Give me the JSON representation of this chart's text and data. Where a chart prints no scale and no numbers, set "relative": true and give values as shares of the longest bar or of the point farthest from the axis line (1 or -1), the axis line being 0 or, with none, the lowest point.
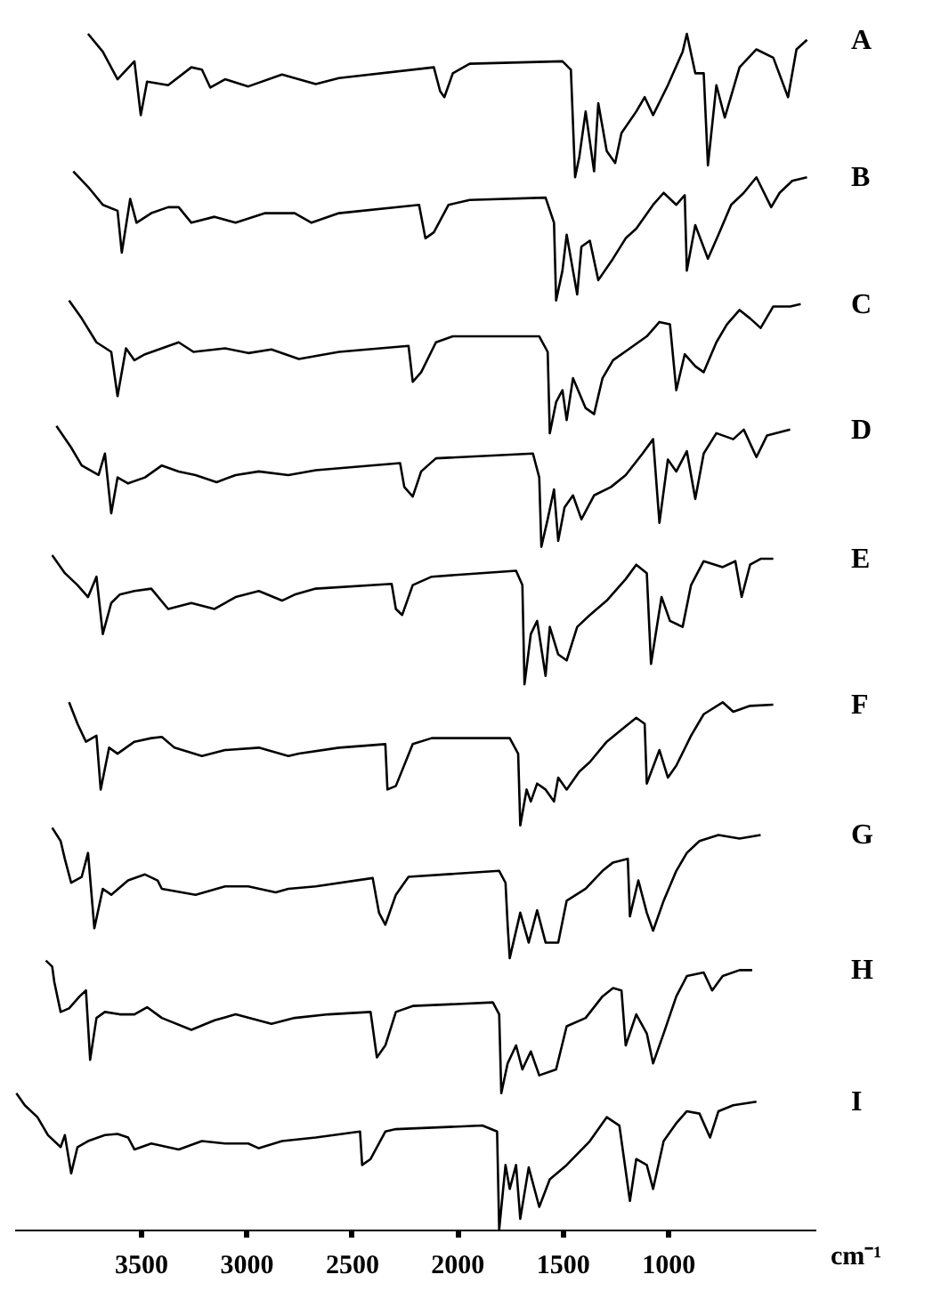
{
  "chart_data": {
    "type": "line",
    "relative": true,
    "xlabel": "cm⁻¹",
    "xlim": [
      4100,
      300
    ],
    "xticks": [
      3500,
      3000,
      2500,
      2000,
      1500,
      1000
    ],
    "marker": "none",
    "line_style": "solid",
    "series": [
      {
        "name": "A",
        "color": "#000000",
        "x": [
          3750,
          3680,
          3610,
          3530,
          3500,
          3470,
          3370,
          3260,
          3210,
          3170,
          3100,
          2990,
          2830,
          2670,
          2560,
          2110,
          2080,
          2060,
          2020,
          1940,
          1500,
          1460,
          1440,
          1420,
          1390,
          1350,
          1330,
          1290,
          1250,
          1220,
          1150,
          1110,
          1070,
          1000,
          930,
          910,
          870,
          830,
          810,
          770,
          730,
          660,
          580,
          500,
          430,
          390,
          340
        ],
        "values": [
          1.0,
          0.985,
          0.962,
          0.977,
          0.932,
          0.96,
          0.957,
          0.972,
          0.97,
          0.955,
          0.962,
          0.956,
          0.966,
          0.958,
          0.963,
          0.972,
          0.952,
          0.947,
          0.967,
          0.975,
          0.977,
          0.97,
          0.88,
          0.897,
          0.935,
          0.885,
          0.942,
          0.902,
          0.892,
          0.917,
          0.935,
          0.947,
          0.932,
          0.957,
          0.985,
          1.0,
          0.967,
          0.967,
          0.89,
          0.957,
          0.93,
          0.972,
          0.987,
          0.98,
          0.947,
          0.987,
          0.995
        ]
      },
      {
        "name": "B",
        "color": "#000000",
        "x": [
          3820,
          3750,
          3680,
          3610,
          3590,
          3550,
          3520,
          3450,
          3370,
          3320,
          3260,
          3150,
          3050,
          2910,
          2770,
          2690,
          2560,
          2180,
          2150,
          2110,
          2040,
          1940,
          1580,
          1540,
          1530,
          1500,
          1480,
          1430,
          1410,
          1370,
          1330,
          1260,
          1200,
          1150,
          1070,
          1020,
          960,
          920,
          910,
          870,
          810,
          760,
          700,
          640,
          580,
          510,
          470,
          410,
          340
        ],
        "values": [
          0.885,
          0.872,
          0.857,
          0.852,
          0.817,
          0.862,
          0.842,
          0.85,
          0.855,
          0.855,
          0.842,
          0.847,
          0.842,
          0.85,
          0.85,
          0.842,
          0.85,
          0.857,
          0.829,
          0.834,
          0.857,
          0.861,
          0.863,
          0.842,
          0.777,
          0.802,
          0.832,
          0.782,
          0.822,
          0.827,
          0.794,
          0.812,
          0.829,
          0.837,
          0.857,
          0.867,
          0.857,
          0.865,
          0.802,
          0.84,
          0.812,
          0.832,
          0.857,
          0.867,
          0.88,
          0.855,
          0.867,
          0.877,
          0.88
        ]
      },
      {
        "name": "C",
        "color": "#000000",
        "x": [
          3840,
          3780,
          3710,
          3640,
          3610,
          3570,
          3530,
          3480,
          3400,
          3320,
          3250,
          3100,
          2990,
          2880,
          2750,
          2560,
          2230,
          2210,
          2170,
          2100,
          2020,
          1610,
          1570,
          1560,
          1530,
          1500,
          1480,
          1450,
          1390,
          1350,
          1310,
          1260,
          1180,
          1100,
          1040,
          990,
          960,
          920,
          870,
          830,
          770,
          720,
          660,
          610,
          560,
          500,
          420,
          370
        ],
        "values": [
          0.777,
          0.762,
          0.742,
          0.734,
          0.697,
          0.737,
          0.727,
          0.732,
          0.737,
          0.742,
          0.734,
          0.737,
          0.733,
          0.736,
          0.728,
          0.734,
          0.739,
          0.709,
          0.717,
          0.742,
          0.747,
          0.747,
          0.734,
          0.666,
          0.692,
          0.702,
          0.677,
          0.712,
          0.687,
          0.682,
          0.712,
          0.727,
          0.737,
          0.747,
          0.759,
          0.757,
          0.702,
          0.732,
          0.722,
          0.717,
          0.742,
          0.757,
          0.769,
          0.762,
          0.754,
          0.772,
          0.772,
          0.774
        ]
      },
      {
        "name": "D",
        "color": "#000000",
        "x": [
          3900,
          3830,
          3780,
          3700,
          3670,
          3640,
          3610,
          3560,
          3480,
          3400,
          3320,
          3240,
          3140,
          3050,
          2940,
          2800,
          2670,
          2270,
          2250,
          2210,
          2170,
          2100,
          1640,
          1610,
          1600,
          1570,
          1540,
          1520,
          1490,
          1450,
          1410,
          1350,
          1270,
          1200,
          1120,
          1070,
          1040,
          1000,
          960,
          910,
          870,
          830,
          770,
          690,
          640,
          580,
          530,
          420
        ],
        "values": [
          0.672,
          0.654,
          0.639,
          0.631,
          0.649,
          0.599,
          0.629,
          0.624,
          0.629,
          0.639,
          0.634,
          0.631,
          0.625,
          0.631,
          0.634,
          0.631,
          0.635,
          0.641,
          0.621,
          0.613,
          0.634,
          0.645,
          0.649,
          0.629,
          0.571,
          0.594,
          0.619,
          0.576,
          0.604,
          0.614,
          0.594,
          0.614,
          0.621,
          0.631,
          0.649,
          0.661,
          0.591,
          0.644,
          0.634,
          0.651,
          0.611,
          0.649,
          0.666,
          0.661,
          0.669,
          0.646,
          0.664,
          0.669
        ]
      },
      {
        "name": "E",
        "color": "#000000",
        "x": [
          3920,
          3860,
          3800,
          3750,
          3710,
          3680,
          3640,
          3600,
          3530,
          3450,
          3370,
          3260,
          3150,
          3050,
          2940,
          2830,
          2770,
          2670,
          2310,
          2290,
          2260,
          2210,
          2120,
          1720,
          1690,
          1680,
          1650,
          1620,
          1580,
          1560,
          1520,
          1480,
          1430,
          1370,
          1290,
          1200,
          1150,
          1100,
          1080,
          1030,
          990,
          930,
          890,
          830,
          740,
          680,
          650,
          610,
          560,
          500
        ],
        "values": [
          0.564,
          0.549,
          0.539,
          0.529,
          0.546,
          0.498,
          0.524,
          0.531,
          0.534,
          0.536,
          0.519,
          0.524,
          0.519,
          0.529,
          0.534,
          0.526,
          0.531,
          0.536,
          0.54,
          0.519,
          0.514,
          0.539,
          0.546,
          0.551,
          0.539,
          0.456,
          0.498,
          0.509,
          0.463,
          0.504,
          0.481,
          0.476,
          0.504,
          0.514,
          0.526,
          0.544,
          0.556,
          0.549,
          0.473,
          0.529,
          0.509,
          0.504,
          0.539,
          0.559,
          0.554,
          0.559,
          0.529,
          0.556,
          0.561,
          0.561
        ]
      },
      {
        "name": "F",
        "color": "#000000",
        "x": [
          3840,
          3800,
          3760,
          3710,
          3690,
          3650,
          3610,
          3530,
          3450,
          3400,
          3340,
          3210,
          3100,
          2940,
          2800,
          2750,
          2560,
          2340,
          2330,
          2290,
          2210,
          2120,
          1750,
          1710,
          1700,
          1670,
          1650,
          1620,
          1580,
          1540,
          1520,
          1480,
          1420,
          1370,
          1290,
          1200,
          1150,
          1110,
          1100,
          1040,
          1000,
          960,
          890,
          830,
          740,
          690,
          610,
          500
        ],
        "values": [
          0.441,
          0.423,
          0.408,
          0.413,
          0.368,
          0.403,
          0.398,
          0.408,
          0.411,
          0.412,
          0.403,
          0.396,
          0.401,
          0.403,
          0.396,
          0.398,
          0.403,
          0.406,
          0.368,
          0.371,
          0.406,
          0.411,
          0.411,
          0.398,
          0.338,
          0.368,
          0.358,
          0.373,
          0.368,
          0.358,
          0.378,
          0.368,
          0.383,
          0.391,
          0.408,
          0.421,
          0.428,
          0.423,
          0.373,
          0.401,
          0.378,
          0.388,
          0.413,
          0.431,
          0.441,
          0.433,
          0.438,
          0.439
        ]
      },
      {
        "name": "G",
        "color": "#000000",
        "x": [
          3920,
          3880,
          3860,
          3830,
          3780,
          3750,
          3720,
          3680,
          3640,
          3560,
          3480,
          3420,
          3400,
          3240,
          3100,
          2990,
          2860,
          2800,
          2670,
          2400,
          2370,
          2340,
          2290,
          2230,
          1800,
          1770,
          1760,
          1750,
          1700,
          1660,
          1620,
          1580,
          1520,
          1480,
          1390,
          1310,
          1260,
          1190,
          1180,
          1140,
          1100,
          1070,
          1020,
          960,
          910,
          850,
          760,
          660,
          560
        ],
        "values": [
          0.336,
          0.325,
          0.31,
          0.29,
          0.295,
          0.315,
          0.252,
          0.285,
          0.28,
          0.292,
          0.297,
          0.292,
          0.285,
          0.28,
          0.287,
          0.287,
          0.282,
          0.285,
          0.287,
          0.294,
          0.265,
          0.255,
          0.28,
          0.295,
          0.3,
          0.29,
          0.255,
          0.227,
          0.265,
          0.24,
          0.267,
          0.24,
          0.24,
          0.275,
          0.285,
          0.3,
          0.307,
          0.31,
          0.262,
          0.292,
          0.265,
          0.25,
          0.275,
          0.3,
          0.315,
          0.325,
          0.33,
          0.327,
          0.33
        ]
      },
      {
        "name": "H",
        "color": "#000000",
        "x": [
          3950,
          3920,
          3910,
          3880,
          3840,
          3790,
          3760,
          3740,
          3710,
          3670,
          3600,
          3530,
          3470,
          3400,
          3260,
          3150,
          3050,
          2880,
          2770,
          2610,
          2410,
          2380,
          2340,
          2290,
          2210,
          1830,
          1800,
          1790,
          1760,
          1720,
          1690,
          1650,
          1610,
          1530,
          1480,
          1390,
          1310,
          1260,
          1220,
          1200,
          1150,
          1100,
          1070,
          1020,
          960,
          910,
          830,
          790,
          740,
          660,
          600
        ],
        "values": [
          0.225,
          0.22,
          0.207,
          0.182,
          0.185,
          0.195,
          0.2,
          0.142,
          0.177,
          0.182,
          0.18,
          0.18,
          0.186,
          0.177,
          0.167,
          0.175,
          0.18,
          0.172,
          0.177,
          0.18,
          0.182,
          0.144,
          0.154,
          0.182,
          0.187,
          0.19,
          0.18,
          0.114,
          0.139,
          0.154,
          0.134,
          0.149,
          0.129,
          0.134,
          0.17,
          0.177,
          0.195,
          0.202,
          0.2,
          0.154,
          0.18,
          0.164,
          0.139,
          0.164,
          0.195,
          0.212,
          0.215,
          0.2,
          0.212,
          0.217,
          0.217
        ]
      },
      {
        "name": "I",
        "color": "#000000",
        "x": [
          4090,
          4050,
          3990,
          3940,
          3880,
          3860,
          3830,
          3800,
          3750,
          3670,
          3610,
          3560,
          3530,
          3450,
          3320,
          3210,
          3100,
          2990,
          2940,
          2830,
          2670,
          2460,
          2450,
          2410,
          2340,
          2290,
          1880,
          1810,
          1800,
          1770,
          1750,
          1720,
          1700,
          1660,
          1610,
          1560,
          1480,
          1370,
          1290,
          1230,
          1180,
          1150,
          1100,
          1070,
          1020,
          960,
          910,
          850,
          800,
          760,
          690,
          580
        ],
        "values": [
          0.114,
          0.104,
          0.094,
          0.079,
          0.069,
          0.079,
          0.047,
          0.069,
          0.074,
          0.079,
          0.08,
          0.077,
          0.067,
          0.072,
          0.067,
          0.074,
          0.072,
          0.072,
          0.068,
          0.074,
          0.077,
          0.082,
          0.054,
          0.059,
          0.082,
          0.084,
          0.087,
          0.082,
          0.0,
          0.054,
          0.034,
          0.054,
          0.009,
          0.052,
          0.019,
          0.042,
          0.054,
          0.074,
          0.094,
          0.087,
          0.024,
          0.059,
          0.054,
          0.034,
          0.074,
          0.089,
          0.099,
          0.097,
          0.077,
          0.099,
          0.104,
          0.107
        ]
      }
    ]
  }
}
